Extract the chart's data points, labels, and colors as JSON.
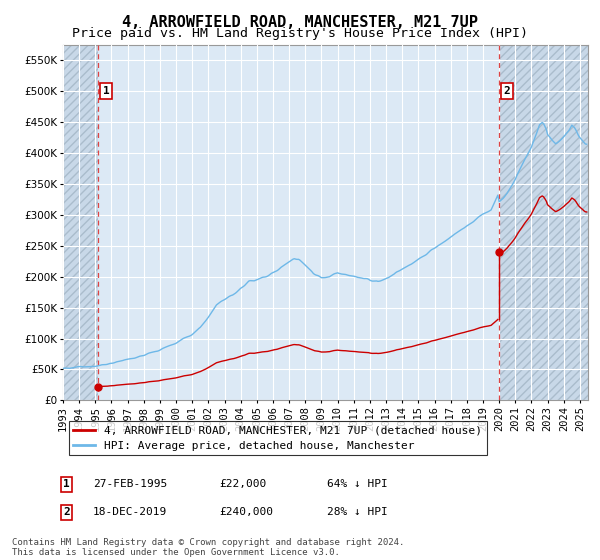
{
  "title": "4, ARROWFIELD ROAD, MANCHESTER, M21 7UP",
  "subtitle": "Price paid vs. HM Land Registry's House Price Index (HPI)",
  "ylabel_ticks": [
    0,
    50000,
    100000,
    150000,
    200000,
    250000,
    300000,
    350000,
    400000,
    450000,
    500000,
    550000
  ],
  "ylim": [
    0,
    575000
  ],
  "xlim_start": 1993.0,
  "xlim_end": 2025.5,
  "x_ticks": [
    1993,
    1994,
    1995,
    1996,
    1997,
    1998,
    1999,
    2000,
    2001,
    2002,
    2003,
    2004,
    2005,
    2006,
    2007,
    2008,
    2009,
    2010,
    2011,
    2012,
    2013,
    2014,
    2015,
    2016,
    2017,
    2018,
    2019,
    2020,
    2021,
    2022,
    2023,
    2024,
    2025
  ],
  "sale1_x": 1995.15,
  "sale1_y": 22000,
  "sale1_label": "1",
  "sale1_date": "27-FEB-1995",
  "sale1_price": "£22,000",
  "sale1_hpi": "64% ↓ HPI",
  "sale2_x": 2019.96,
  "sale2_y": 240000,
  "sale2_label": "2",
  "sale2_date": "18-DEC-2019",
  "sale2_price": "£240,000",
  "sale2_hpi": "28% ↓ HPI",
  "hpi_color": "#6eb8e8",
  "price_color": "#cc0000",
  "background_plot": "#dce9f5",
  "background_hatch": "#c8d8e8",
  "grid_color": "#ffffff",
  "vline_color": "#dd4444",
  "legend_label_red": "4, ARROWFIELD ROAD, MANCHESTER, M21 7UP (detached house)",
  "legend_label_blue": "HPI: Average price, detached house, Manchester",
  "footer": "Contains HM Land Registry data © Crown copyright and database right 2024.\nThis data is licensed under the Open Government Licence v3.0.",
  "title_fontsize": 11,
  "subtitle_fontsize": 9.5,
  "tick_fontsize": 7.5,
  "legend_fontsize": 8,
  "footer_fontsize": 6.5
}
